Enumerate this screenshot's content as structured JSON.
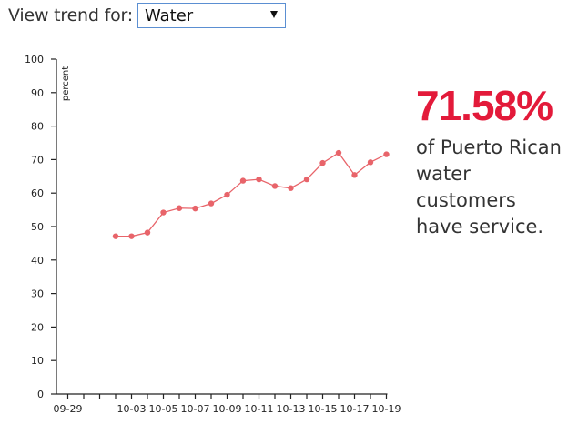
{
  "controls": {
    "label": "View trend for:",
    "selected": "Water"
  },
  "stat": {
    "value": "71.58%",
    "description": "of Puerto Rican water customers have service.",
    "color": "#e31a3a"
  },
  "chart_data": {
    "type": "line",
    "ylabel": "percent",
    "ylim": [
      0,
      100
    ],
    "yticks": [
      0,
      10,
      20,
      30,
      40,
      50,
      60,
      70,
      80,
      90,
      100
    ],
    "xlim": [
      "09-28",
      "10-19"
    ],
    "xticks": [
      "09-29",
      "10-03",
      "10-05",
      "10-07",
      "10-09",
      "10-11",
      "10-13",
      "10-15",
      "10-17",
      "10-19"
    ],
    "grid": false,
    "series": [
      {
        "color": "#e8646a",
        "points": [
          {
            "x": "10-02",
            "y": 47.1
          },
          {
            "x": "10-03",
            "y": 47.1
          },
          {
            "x": "10-04",
            "y": 48.2
          },
          {
            "x": "10-05",
            "y": 54.2
          },
          {
            "x": "10-06",
            "y": 55.5
          },
          {
            "x": "10-07",
            "y": 55.4
          },
          {
            "x": "10-08",
            "y": 56.9
          },
          {
            "x": "10-09",
            "y": 59.5
          },
          {
            "x": "10-10",
            "y": 63.7
          },
          {
            "x": "10-11",
            "y": 64.1
          },
          {
            "x": "10-12",
            "y": 62.1
          },
          {
            "x": "10-13",
            "y": 61.5
          },
          {
            "x": "10-14",
            "y": 64.1
          },
          {
            "x": "10-15",
            "y": 69.0
          },
          {
            "x": "10-16",
            "y": 72.0
          },
          {
            "x": "10-17",
            "y": 65.4
          },
          {
            "x": "10-18",
            "y": 69.2
          },
          {
            "x": "10-19",
            "y": 71.58
          }
        ]
      }
    ]
  }
}
